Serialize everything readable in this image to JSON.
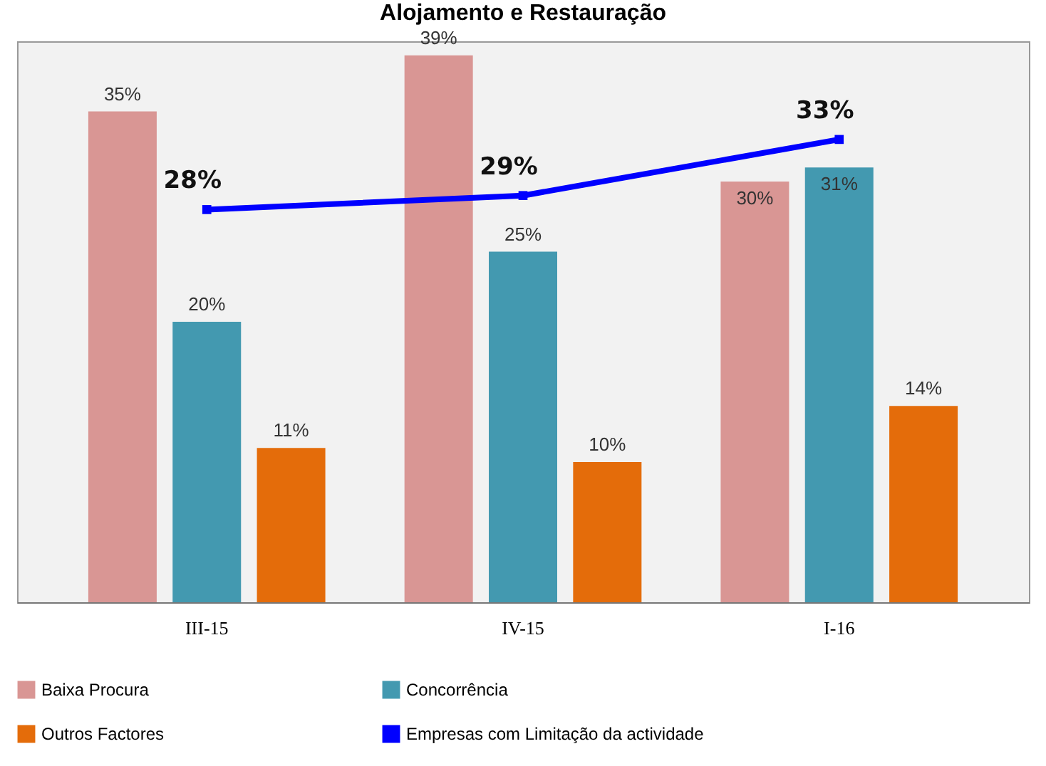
{
  "chart_data": {
    "type": "bar",
    "title": "Alojamento e Restauração",
    "categories": [
      "III-15",
      "IV-15",
      "I-16"
    ],
    "series": [
      {
        "name": "Baixa Procura",
        "color": "#d99694",
        "values": [
          35,
          39,
          30
        ],
        "value_labels": [
          "35%",
          "39%",
          "30%"
        ]
      },
      {
        "name": "Concorrência",
        "color": "#4399b0",
        "values": [
          20,
          25,
          31
        ],
        "value_labels": [
          "20%",
          "25%",
          "31%"
        ]
      },
      {
        "name": "Outros Factores",
        "color": "#e46c0a",
        "values": [
          11,
          10,
          14
        ],
        "value_labels": [
          "11%",
          "10%",
          "14%"
        ]
      },
      {
        "name": "Empresas com Limitação da actividade",
        "type": "line",
        "color": "#0000ff",
        "values": [
          28,
          29,
          33
        ],
        "value_labels": [
          "28%",
          "29%",
          "33%"
        ]
      }
    ],
    "legend": "bottom",
    "tick_labels": "x",
    "marker": "square",
    "line_style": "solid"
  }
}
